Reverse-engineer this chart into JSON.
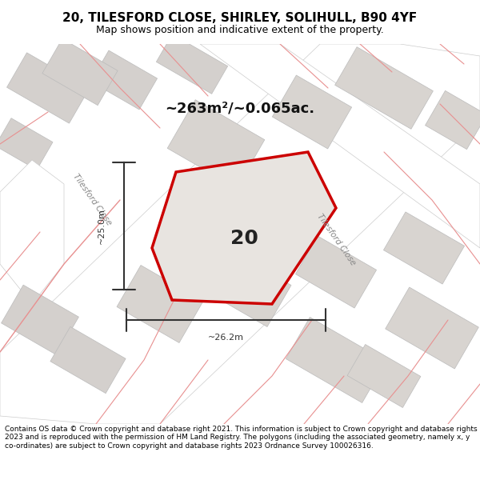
{
  "title": "20, TILESFORD CLOSE, SHIRLEY, SOLIHULL, B90 4YF",
  "subtitle": "Map shows position and indicative extent of the property.",
  "area_label": "~263m²/~0.065ac.",
  "property_number": "20",
  "dim_width": "~26.2m",
  "dim_height": "~25.0m",
  "road_label_1": "Tilesford Close",
  "road_label_2": "Tilesford Close",
  "footer": "Contains OS data © Crown copyright and database right 2021. This information is subject to Crown copyright and database rights 2023 and is reproduced with the permission of HM Land Registry. The polygons (including the associated geometry, namely x, y co-ordinates) are subject to Crown copyright and database rights 2023 Ordnance Survey 100026316.",
  "bg_color": "#f0eded",
  "map_bg_color": "#e8e8e8",
  "plot_fill_color": "#e0e0e0",
  "plot_edge_color": "#cc0000",
  "road_fill_color": "#ffffff",
  "footer_bg": "#ffffff",
  "title_bg": "#ffffff",
  "dim_color": "#333333",
  "road_label_color": "#888888",
  "map_road_outline": "#cccccc",
  "map_road_fill": "#ffffff",
  "map_plot_outline": "#bbbbbb",
  "fig_width": 6.0,
  "fig_height": 6.25
}
